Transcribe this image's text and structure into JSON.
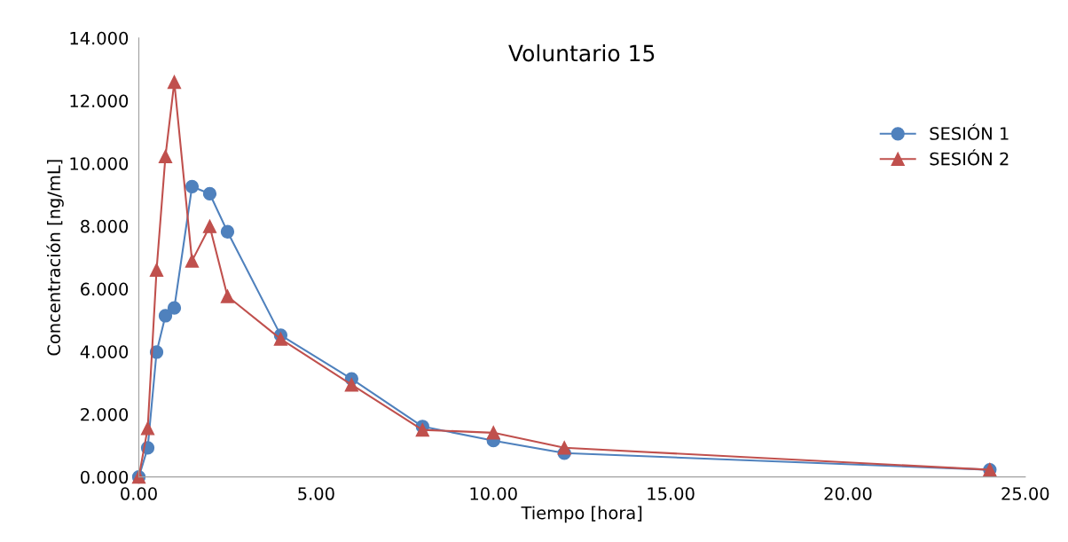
{
  "chart_data": {
    "type": "line",
    "title": "Voluntario 15",
    "xlabel": "Tiempo [hora]",
    "ylabel": "Concentración [ng/mL]",
    "x": [
      0,
      0.25,
      0.5,
      0.75,
      1,
      1.5,
      2,
      2.5,
      4,
      6,
      8,
      10,
      12,
      24
    ],
    "series": [
      {
        "name": "SESIÓN 1",
        "color": "#4f81bd",
        "marker": "circle",
        "values": [
          0,
          0.93,
          3.98,
          5.14,
          5.39,
          9.26,
          9.03,
          7.82,
          4.52,
          3.13,
          1.61,
          1.16,
          0.76,
          0.23
        ]
      },
      {
        "name": "SESIÓN 2",
        "color": "#c0504d",
        "marker": "triangle",
        "values": [
          0,
          1.55,
          6.6,
          10.22,
          12.59,
          6.89,
          7.99,
          5.76,
          4.4,
          2.94,
          1.5,
          1.41,
          0.93,
          0.23
        ]
      }
    ],
    "xlim": [
      0,
      25
    ],
    "ylim": [
      0,
      14
    ],
    "xticks": [
      {
        "value": 0,
        "label": "0.00"
      },
      {
        "value": 5,
        "label": "5.00"
      },
      {
        "value": 10,
        "label": "10.00"
      },
      {
        "value": 15,
        "label": "15.00"
      },
      {
        "value": 20,
        "label": "20.00"
      },
      {
        "value": 25,
        "label": "25.00"
      }
    ],
    "yticks": [
      {
        "value": 0,
        "label": "0.000"
      },
      {
        "value": 2,
        "label": "2.000"
      },
      {
        "value": 4,
        "label": "4.000"
      },
      {
        "value": 6,
        "label": "6.000"
      },
      {
        "value": 8,
        "label": "8.000"
      },
      {
        "value": 10,
        "label": "10.000"
      },
      {
        "value": 12,
        "label": "12.000"
      },
      {
        "value": 14,
        "label": "14.000"
      }
    ],
    "grid": false,
    "legend": "right",
    "line_style": "solid"
  }
}
